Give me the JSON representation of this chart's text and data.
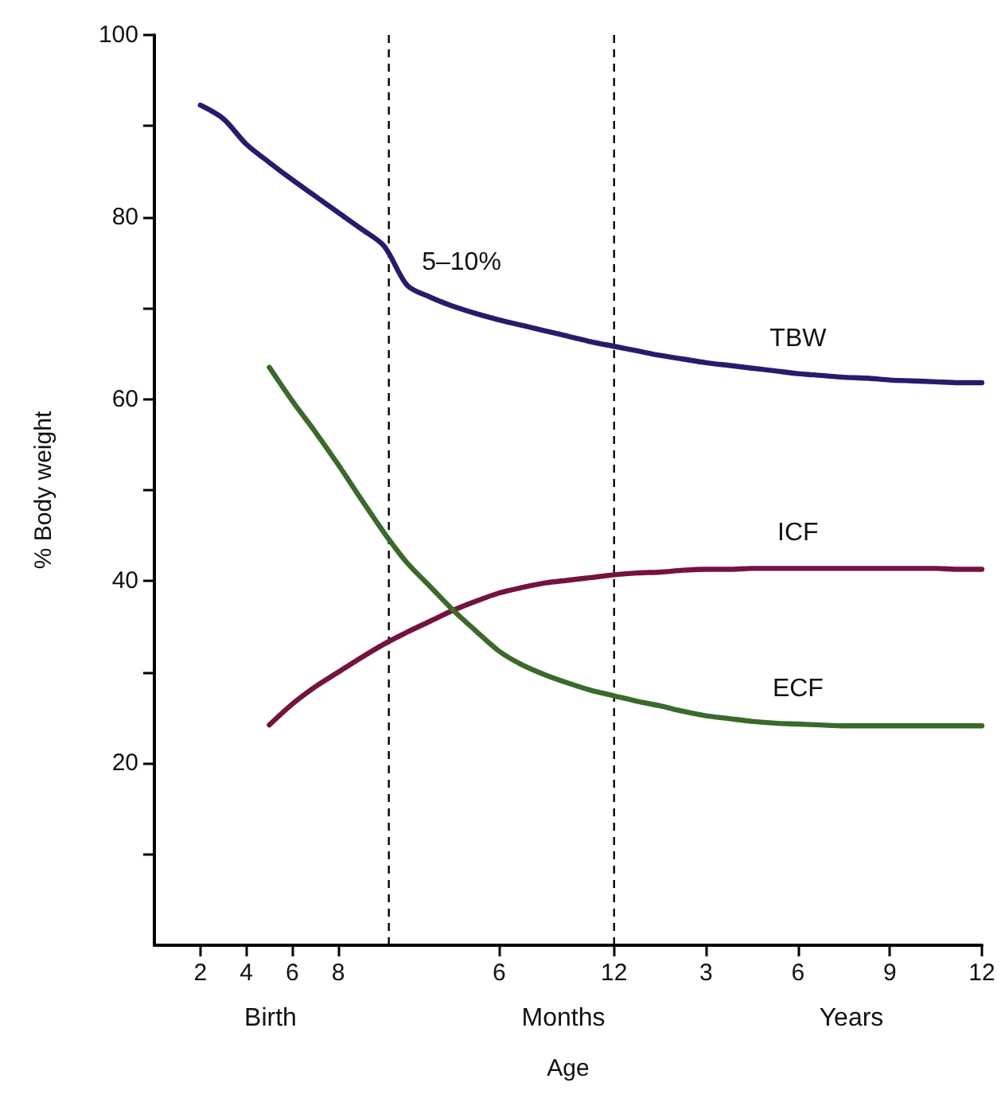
{
  "chart_data": {
    "type": "line",
    "xlabel": "Age",
    "ylabel": "% Body weight",
    "categories": [
      null,
      null,
      "2",
      null,
      "4",
      null,
      "6",
      null,
      "8",
      null,
      null,
      null,
      null,
      null,
      null,
      "6",
      null,
      null,
      null,
      null,
      "12",
      null,
      null,
      null,
      "3",
      null,
      null,
      null,
      "6",
      null,
      null,
      null,
      "9",
      null,
      null,
      null,
      "12"
    ],
    "ylim": [
      0,
      100
    ],
    "yticks": [
      {
        "value": 10,
        "label": null
      },
      20,
      {
        "value": 30,
        "label": null
      },
      40,
      {
        "value": 50,
        "label": null
      },
      60,
      {
        "value": 70,
        "label": null
      },
      80,
      {
        "value": 90,
        "label": null
      },
      100
    ],
    "legend": false,
    "marker": "none",
    "line_style": "solid",
    "series": [
      {
        "name": "TBW",
        "color": "#251d6b",
        "values": [
          null,
          null,
          92.3,
          90.8,
          88.0,
          86.0,
          84.1,
          82.3,
          80.5,
          78.7,
          76.8,
          72.5,
          71.2,
          70.2,
          69.4,
          68.7,
          68.1,
          67.5,
          66.9,
          66.3,
          65.8,
          65.3,
          64.8,
          64.4,
          64.0,
          63.7,
          63.4,
          63.1,
          62.8,
          62.6,
          62.4,
          62.3,
          62.1,
          62.0,
          61.9,
          61.8,
          61.8
        ]
      },
      {
        "name": "ICF",
        "color": "#74133f",
        "values": [
          null,
          null,
          null,
          null,
          null,
          24.2,
          26.5,
          28.4,
          30.0,
          31.6,
          33.1,
          34.4,
          35.6,
          36.8,
          37.8,
          38.7,
          39.3,
          39.8,
          40.1,
          40.4,
          40.7,
          40.9,
          41.0,
          41.2,
          41.3,
          41.3,
          41.4,
          41.4,
          41.4,
          41.4,
          41.4,
          41.4,
          41.4,
          41.4,
          41.4,
          41.3,
          41.3
        ]
      },
      {
        "name": "ECF",
        "color": "#3a6a2b",
        "values": [
          null,
          null,
          null,
          null,
          null,
          63.5,
          59.8,
          56.4,
          52.8,
          49.0,
          45.3,
          42.0,
          39.4,
          36.8,
          34.5,
          32.3,
          30.8,
          29.7,
          28.8,
          28.0,
          27.4,
          26.8,
          26.3,
          25.7,
          25.2,
          24.9,
          24.6,
          24.4,
          24.3,
          24.2,
          24.1,
          24.1,
          24.1,
          24.1,
          24.1,
          24.1,
          24.1
        ]
      }
    ],
    "annotations": [
      "5–10%",
      "Birth",
      "Months",
      "Years"
    ]
  }
}
